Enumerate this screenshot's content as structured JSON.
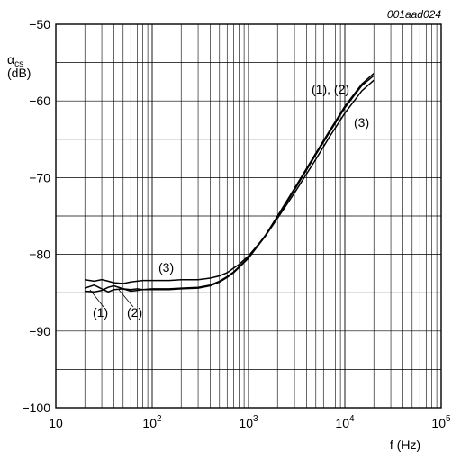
{
  "figure_ref": "001aad024",
  "chart_data": {
    "type": "line",
    "x_scale": "log",
    "xlim": [
      10,
      100000
    ],
    "ylim": [
      -100,
      -50
    ],
    "grid": true,
    "xlabel": "f (Hz)",
    "ylabel_symbol": "α",
    "ylabel_subscript": "cs",
    "ylabel_unit": "(dB)",
    "x_ticks": [
      {
        "base": "10",
        "exp": ""
      },
      {
        "base": "10",
        "exp": "2"
      },
      {
        "base": "10",
        "exp": "3"
      },
      {
        "base": "10",
        "exp": "4"
      },
      {
        "base": "10",
        "exp": "5"
      }
    ],
    "y_ticks": [
      "−100",
      "−90",
      "−80",
      "−70",
      "−60",
      "−50"
    ],
    "series": [
      {
        "name": "(1)",
        "x": [
          20,
          25,
          30,
          35,
          40,
          50,
          60,
          70,
          80,
          100,
          150,
          200,
          300,
          400,
          500,
          600,
          700,
          800,
          1000,
          1500,
          2000,
          3000,
          5000,
          7000,
          10000,
          15000,
          20000
        ],
        "y": [
          -84.4,
          -84.0,
          -84.5,
          -84.9,
          -84.6,
          -84.5,
          -84.6,
          -84.5,
          -84.6,
          -84.5,
          -84.5,
          -84.4,
          -84.3,
          -84.0,
          -83.5,
          -82.9,
          -82.3,
          -81.6,
          -80.4,
          -77.5,
          -75.0,
          -71.4,
          -66.8,
          -63.8,
          -60.7,
          -57.8,
          -56.4
        ]
      },
      {
        "name": "(2)",
        "x": [
          20,
          25,
          30,
          35,
          40,
          50,
          60,
          70,
          80,
          100,
          150,
          200,
          300,
          400,
          500,
          600,
          700,
          800,
          1000,
          1500,
          2000,
          3000,
          5000,
          7000,
          10000,
          15000,
          20000
        ],
        "y": [
          -84.8,
          -84.9,
          -84.7,
          -84.3,
          -84.1,
          -84.5,
          -84.8,
          -84.7,
          -84.6,
          -84.6,
          -84.6,
          -84.5,
          -84.4,
          -84.1,
          -83.6,
          -83.0,
          -82.4,
          -81.7,
          -80.5,
          -77.6,
          -75.1,
          -71.6,
          -67.0,
          -64.0,
          -60.9,
          -58.0,
          -56.7
        ]
      },
      {
        "name": "(3)",
        "x": [
          20,
          25,
          30,
          35,
          40,
          50,
          60,
          70,
          80,
          100,
          150,
          200,
          300,
          400,
          500,
          600,
          700,
          800,
          1000,
          1500,
          2000,
          3000,
          5000,
          7000,
          10000,
          15000,
          20000
        ],
        "y": [
          -83.3,
          -83.5,
          -83.3,
          -83.5,
          -83.7,
          -83.8,
          -83.6,
          -83.5,
          -83.4,
          -83.4,
          -83.4,
          -83.3,
          -83.3,
          -83.1,
          -82.8,
          -82.4,
          -81.8,
          -81.3,
          -80.2,
          -77.6,
          -75.3,
          -72.0,
          -67.6,
          -64.6,
          -61.6,
          -58.7,
          -57.3
        ]
      }
    ],
    "annotations": [
      {
        "text": "(1), (2)",
        "near": "upper right, beside curves (1) and (2)"
      },
      {
        "text": "(3)",
        "near": "below upper right label, beside curve (3)"
      },
      {
        "text": "(3)",
        "near": "above flat section of curve (3) near 200 Hz"
      },
      {
        "text": "(1)",
        "near": "below flat section near 35 Hz"
      },
      {
        "text": "(2)",
        "near": "below flat section near 70 Hz"
      }
    ]
  }
}
